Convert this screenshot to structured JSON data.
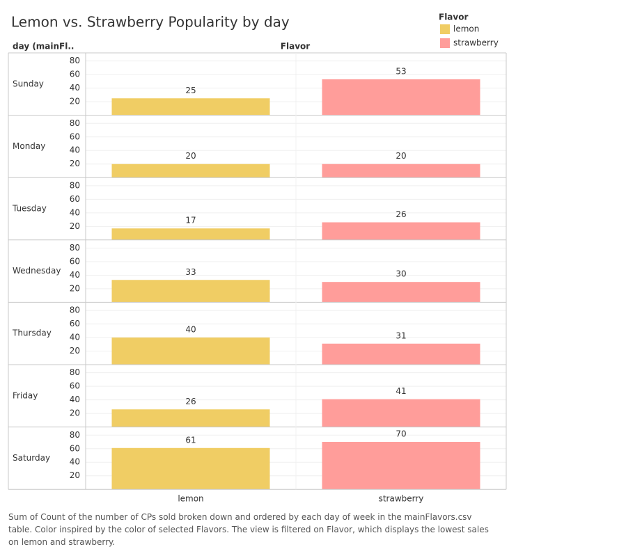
{
  "chart_data": {
    "type": "bar",
    "title": "Lemon vs. Strawberry  Popularity by day",
    "row_header": "day (mainFl..",
    "column_header": "Flavor",
    "legend_title": "Flavor",
    "rows": [
      "Sunday",
      "Monday",
      "Tuesday",
      "Wednesday",
      "Thursday",
      "Friday",
      "Saturday"
    ],
    "series": [
      {
        "name": "lemon",
        "color": "#f0cd64",
        "values": [
          25,
          20,
          17,
          33,
          40,
          26,
          61
        ]
      },
      {
        "name": "strawberry",
        "color": "#ff9d9a",
        "values": [
          53,
          20,
          26,
          30,
          31,
          41,
          70
        ]
      }
    ],
    "ylim": [
      0,
      92
    ],
    "yticks": [
      20,
      40,
      60,
      80
    ],
    "grid": true,
    "legend": "top-right",
    "caption": "Sum of Count of the number of CPs sold broken down and ordered by each day of week in the mainFlavors.csv table. Color inspired by the color of selected Flavors. The view is filtered on Flavor, which displays the lowest sales on lemon and strawberry."
  }
}
